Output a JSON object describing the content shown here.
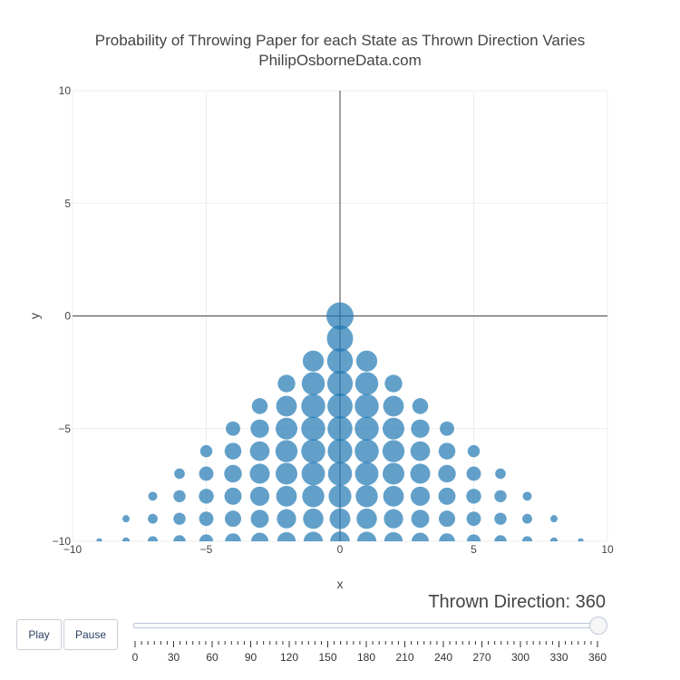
{
  "chart_data": {
    "type": "scatter",
    "title": "Probability of Throwing Paper for each State as Thrown Direction Varies",
    "subtitle": "PhilipOsborneData.com",
    "xlabel": "x",
    "ylabel": "y",
    "xlim": [
      -10,
      10
    ],
    "ylim": [
      -10,
      10
    ],
    "xticks": [
      -10,
      -5,
      0,
      5,
      10
    ],
    "yticks": [
      -10,
      -5,
      0,
      5,
      10
    ],
    "grid": true,
    "zero_lines": true,
    "marker_color": "#1f77b4",
    "marker_opacity": 0.7,
    "marker_encoding": "size = probability",
    "points": [
      {
        "x": 0,
        "y": 0,
        "size": 1.0
      },
      {
        "x": 0,
        "y": -1,
        "size": 0.93
      },
      {
        "x": 0,
        "y": -2,
        "size": 0.9
      },
      {
        "x": -1,
        "y": -2,
        "size": 0.6
      },
      {
        "x": 1,
        "y": -2,
        "size": 0.6
      },
      {
        "x": 0,
        "y": -3,
        "size": 0.88
      },
      {
        "x": -1,
        "y": -3,
        "size": 0.72
      },
      {
        "x": 1,
        "y": -3,
        "size": 0.72
      },
      {
        "x": -2,
        "y": -3,
        "size": 0.42
      },
      {
        "x": 2,
        "y": -3,
        "size": 0.42
      },
      {
        "x": 0,
        "y": -4,
        "size": 0.86
      },
      {
        "x": -1,
        "y": -4,
        "size": 0.78
      },
      {
        "x": 1,
        "y": -4,
        "size": 0.78
      },
      {
        "x": -2,
        "y": -4,
        "size": 0.58
      },
      {
        "x": 2,
        "y": -4,
        "size": 0.58
      },
      {
        "x": -3,
        "y": -4,
        "size": 0.34
      },
      {
        "x": 3,
        "y": -4,
        "size": 0.34
      },
      {
        "x": 0,
        "y": -5,
        "size": 0.84
      },
      {
        "x": -1,
        "y": -5,
        "size": 0.78
      },
      {
        "x": 1,
        "y": -5,
        "size": 0.78
      },
      {
        "x": -2,
        "y": -5,
        "size": 0.64
      },
      {
        "x": 2,
        "y": -5,
        "size": 0.64
      },
      {
        "x": -3,
        "y": -5,
        "size": 0.46
      },
      {
        "x": 3,
        "y": -5,
        "size": 0.46
      },
      {
        "x": -4,
        "y": -5,
        "size": 0.28
      },
      {
        "x": 4,
        "y": -5,
        "size": 0.28
      },
      {
        "x": 0,
        "y": -6,
        "size": 0.82
      },
      {
        "x": -1,
        "y": -6,
        "size": 0.78
      },
      {
        "x": 1,
        "y": -6,
        "size": 0.78
      },
      {
        "x": -2,
        "y": -6,
        "size": 0.66
      },
      {
        "x": 2,
        "y": -6,
        "size": 0.66
      },
      {
        "x": -3,
        "y": -6,
        "size": 0.52
      },
      {
        "x": 3,
        "y": -6,
        "size": 0.52
      },
      {
        "x": -4,
        "y": -6,
        "size": 0.38
      },
      {
        "x": 4,
        "y": -6,
        "size": 0.38
      },
      {
        "x": -5,
        "y": -6,
        "size": 0.2
      },
      {
        "x": 5,
        "y": -6,
        "size": 0.2
      },
      {
        "x": 0,
        "y": -7,
        "size": 0.78
      },
      {
        "x": -1,
        "y": -7,
        "size": 0.74
      },
      {
        "x": 1,
        "y": -7,
        "size": 0.74
      },
      {
        "x": -2,
        "y": -7,
        "size": 0.64
      },
      {
        "x": 2,
        "y": -7,
        "size": 0.64
      },
      {
        "x": -3,
        "y": -7,
        "size": 0.54
      },
      {
        "x": 3,
        "y": -7,
        "size": 0.54
      },
      {
        "x": -4,
        "y": -7,
        "size": 0.42
      },
      {
        "x": 4,
        "y": -7,
        "size": 0.42
      },
      {
        "x": -5,
        "y": -7,
        "size": 0.28
      },
      {
        "x": 5,
        "y": -7,
        "size": 0.28
      },
      {
        "x": -6,
        "y": -7,
        "size": 0.15
      },
      {
        "x": 6,
        "y": -7,
        "size": 0.15
      },
      {
        "x": 0,
        "y": -8,
        "size": 0.7
      },
      {
        "x": -1,
        "y": -8,
        "size": 0.66
      },
      {
        "x": 1,
        "y": -8,
        "size": 0.66
      },
      {
        "x": -2,
        "y": -8,
        "size": 0.58
      },
      {
        "x": 2,
        "y": -8,
        "size": 0.58
      },
      {
        "x": -3,
        "y": -8,
        "size": 0.5
      },
      {
        "x": 3,
        "y": -8,
        "size": 0.5
      },
      {
        "x": -4,
        "y": -8,
        "size": 0.4
      },
      {
        "x": 4,
        "y": -8,
        "size": 0.4
      },
      {
        "x": -5,
        "y": -8,
        "size": 0.3
      },
      {
        "x": 5,
        "y": -8,
        "size": 0.3
      },
      {
        "x": -6,
        "y": -8,
        "size": 0.2
      },
      {
        "x": 6,
        "y": -8,
        "size": 0.2
      },
      {
        "x": -7,
        "y": -8,
        "size": 0.11
      },
      {
        "x": 7,
        "y": -8,
        "size": 0.11
      },
      {
        "x": 0,
        "y": -9,
        "size": 0.58
      },
      {
        "x": -1,
        "y": -9,
        "size": 0.56
      },
      {
        "x": 1,
        "y": -9,
        "size": 0.56
      },
      {
        "x": -2,
        "y": -9,
        "size": 0.5
      },
      {
        "x": 2,
        "y": -9,
        "size": 0.5
      },
      {
        "x": -3,
        "y": -9,
        "size": 0.44
      },
      {
        "x": 3,
        "y": -9,
        "size": 0.44
      },
      {
        "x": -4,
        "y": -9,
        "size": 0.36
      },
      {
        "x": 4,
        "y": -9,
        "size": 0.36
      },
      {
        "x": -5,
        "y": -9,
        "size": 0.28
      },
      {
        "x": 5,
        "y": -9,
        "size": 0.28
      },
      {
        "x": -6,
        "y": -9,
        "size": 0.2
      },
      {
        "x": 6,
        "y": -9,
        "size": 0.2
      },
      {
        "x": -7,
        "y": -9,
        "size": 0.13
      },
      {
        "x": 7,
        "y": -9,
        "size": 0.13
      },
      {
        "x": -8,
        "y": -9,
        "size": 0.07
      },
      {
        "x": 8,
        "y": -9,
        "size": 0.07
      },
      {
        "x": 0,
        "y": -10,
        "size": 0.52
      },
      {
        "x": -1,
        "y": -10,
        "size": 0.5
      },
      {
        "x": 1,
        "y": -10,
        "size": 0.5
      },
      {
        "x": -2,
        "y": -10,
        "size": 0.46
      },
      {
        "x": 2,
        "y": -10,
        "size": 0.46
      },
      {
        "x": -3,
        "y": -10,
        "size": 0.4
      },
      {
        "x": 3,
        "y": -10,
        "size": 0.4
      },
      {
        "x": -4,
        "y": -10,
        "size": 0.34
      },
      {
        "x": 4,
        "y": -10,
        "size": 0.34
      },
      {
        "x": -5,
        "y": -10,
        "size": 0.26
      },
      {
        "x": 5,
        "y": -10,
        "size": 0.26
      },
      {
        "x": -6,
        "y": -10,
        "size": 0.2
      },
      {
        "x": 6,
        "y": -10,
        "size": 0.2
      },
      {
        "x": -7,
        "y": -10,
        "size": 0.14
      },
      {
        "x": 7,
        "y": -10,
        "size": 0.14
      },
      {
        "x": -8,
        "y": -10,
        "size": 0.08
      },
      {
        "x": 8,
        "y": -10,
        "size": 0.08
      },
      {
        "x": -9,
        "y": -10,
        "size": 0.05
      },
      {
        "x": 9,
        "y": -10,
        "size": 0.05
      }
    ]
  },
  "controls": {
    "play_label": "Play",
    "pause_label": "Pause"
  },
  "slider": {
    "current_label": "Thrown Direction: 360",
    "current_value": 360,
    "min": 0,
    "max": 360,
    "tick_labels": [
      "0",
      "30",
      "60",
      "90",
      "120",
      "150",
      "180",
      "210",
      "240",
      "270",
      "300",
      "330",
      "360"
    ]
  }
}
